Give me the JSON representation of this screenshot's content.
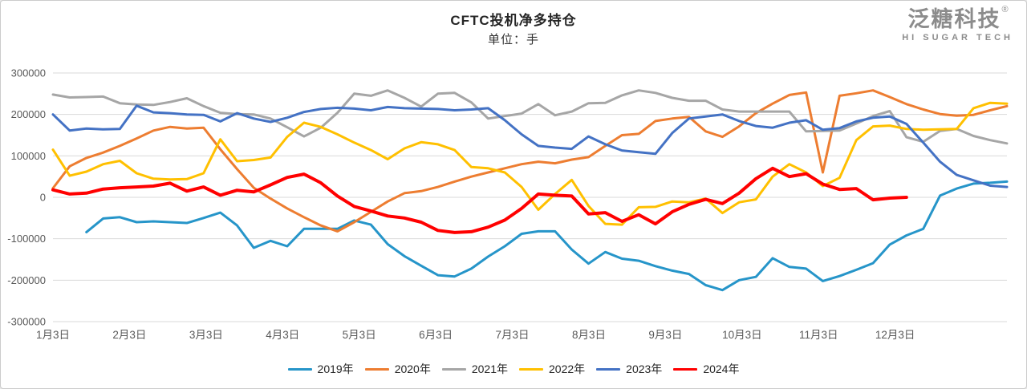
{
  "header": {
    "title": "CFTC投机净多持仓",
    "subtitle": "单位：手"
  },
  "brand": {
    "logo_cn": "泛糖科技",
    "registered_mark": "®",
    "logo_en": "HI SUGAR TECH",
    "color": "#8c8c8c"
  },
  "chart_data": {
    "type": "line",
    "title": "CFTC投机净多持仓",
    "subtitle": "单位：手",
    "xlabel": "",
    "ylabel": "手",
    "x_labels": [
      "1月3日",
      "2月3日",
      "3月3日",
      "4月3日",
      "5月3日",
      "6月3日",
      "7月3日",
      "8月3日",
      "9月3日",
      "10月3日",
      "11月3日",
      "12月3日"
    ],
    "y_ticks": [
      300000,
      200000,
      100000,
      0,
      -100000,
      -200000,
      -300000
    ],
    "ylim": [
      -300000,
      300000
    ],
    "grid": "horizontal",
    "grid_color": "#d9d9d9",
    "axis_label_color": "#595959",
    "legend_position": "bottom",
    "series": [
      {
        "name": "2019年",
        "color": "#2695C9",
        "width": 3,
        "values": [
          null,
          null,
          -84000,
          -51000,
          -48000,
          -60000,
          -58000,
          -60000,
          -62000,
          -50000,
          -37000,
          -68000,
          -122000,
          -105000,
          -118000,
          -76000,
          -76000,
          -76000,
          -56000,
          -66000,
          -113000,
          -142000,
          -165000,
          -188000,
          -191000,
          -172000,
          -143000,
          -118000,
          -88000,
          -82000,
          -82000,
          -126000,
          -160000,
          -132000,
          -148000,
          -153000,
          -166000,
          -177000,
          -185000,
          -212000,
          -224000,
          -200000,
          -192000,
          -147000,
          -168000,
          -172000,
          -202000,
          -190000,
          -175000,
          -159000,
          -114000,
          -92000,
          -76000,
          4000,
          21000,
          33000,
          35000,
          38000
        ]
      },
      {
        "name": "2020年",
        "color": "#ED7D31",
        "width": 3,
        "values": [
          22000,
          75000,
          95000,
          108000,
          124000,
          142000,
          161000,
          170000,
          166000,
          168000,
          116000,
          68000,
          23000,
          -3000,
          -27000,
          -48000,
          -68000,
          -82000,
          -60000,
          -35000,
          -10000,
          10000,
          15000,
          25000,
          38000,
          50000,
          60000,
          70000,
          80000,
          86000,
          82000,
          91000,
          97000,
          124000,
          150000,
          153000,
          184000,
          190000,
          194000,
          159000,
          146000,
          171000,
          203000,
          226000,
          247000,
          253000,
          60000,
          245000,
          251000,
          258000,
          242000,
          225000,
          212000,
          201000,
          197000,
          199000,
          210000,
          220000
        ]
      },
      {
        "name": "2021年",
        "color": "#A6A6A6",
        "width": 3,
        "values": [
          248000,
          241000,
          242000,
          243000,
          227000,
          224000,
          223000,
          230000,
          239000,
          220000,
          204000,
          201000,
          200000,
          190000,
          169000,
          147000,
          168000,
          204000,
          250000,
          245000,
          258000,
          240000,
          219000,
          250000,
          252000,
          229000,
          190000,
          196000,
          202000,
          225000,
          198000,
          207000,
          227000,
          228000,
          246000,
          258000,
          252000,
          240000,
          233000,
          233000,
          212000,
          207000,
          207000,
          207000,
          207000,
          159000,
          160000,
          161000,
          178000,
          196000,
          208000,
          145000,
          134000,
          160000,
          165000,
          148000,
          138000,
          130000
        ]
      },
      {
        "name": "2022年",
        "color": "#FFC000",
        "width": 3,
        "values": [
          115000,
          52000,
          62000,
          80000,
          88000,
          58000,
          45000,
          43000,
          44000,
          58000,
          140000,
          87000,
          90000,
          96000,
          146000,
          180000,
          170000,
          152000,
          132000,
          114000,
          92000,
          118000,
          133000,
          128000,
          114000,
          73000,
          70000,
          60000,
          25000,
          -30000,
          8000,
          42000,
          -21000,
          -64000,
          -66000,
          -24000,
          -23000,
          -10000,
          -12000,
          -3000,
          -38000,
          -12000,
          -5000,
          50000,
          80000,
          60000,
          27000,
          47000,
          138000,
          171000,
          173000,
          165000,
          163000,
          164000,
          165000,
          215000,
          228000,
          226000
        ]
      },
      {
        "name": "2023年",
        "color": "#4472C4",
        "width": 3,
        "values": [
          200000,
          161000,
          166000,
          164000,
          165000,
          221000,
          205000,
          203000,
          200000,
          199000,
          183000,
          203000,
          190000,
          182000,
          192000,
          206000,
          213000,
          216000,
          214000,
          210000,
          218000,
          215000,
          214000,
          213000,
          210000,
          212000,
          215000,
          186000,
          152000,
          124000,
          120000,
          117000,
          147000,
          128000,
          113000,
          109000,
          105000,
          155000,
          190000,
          195000,
          200000,
          184000,
          172000,
          168000,
          180000,
          186000,
          163000,
          167000,
          183000,
          192000,
          195000,
          177000,
          132000,
          86000,
          54000,
          41000,
          28000,
          25000
        ]
      },
      {
        "name": "2024年",
        "color": "#FF0000",
        "width": 4,
        "values": [
          18000,
          8000,
          10000,
          20000,
          23000,
          25000,
          27000,
          34000,
          15000,
          25000,
          5000,
          17000,
          13000,
          30000,
          48000,
          56000,
          35000,
          3000,
          -22000,
          -33000,
          -45000,
          -50000,
          -60000,
          -80000,
          -85000,
          -83000,
          -72000,
          -55000,
          -27000,
          8000,
          5000,
          3000,
          -40000,
          -37000,
          -58000,
          -42000,
          -64000,
          -35000,
          -17000,
          -5000,
          -15000,
          10000,
          45000,
          70000,
          50000,
          57000,
          32000,
          19000,
          21000,
          -6000,
          -2000,
          0,
          null,
          null,
          null,
          null,
          null,
          null
        ]
      }
    ]
  }
}
